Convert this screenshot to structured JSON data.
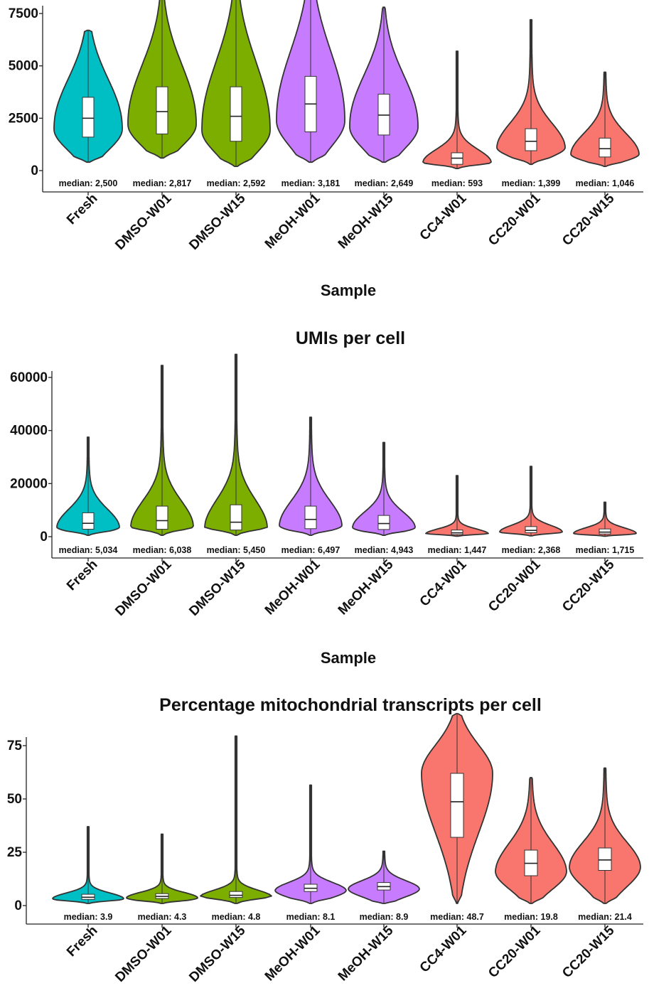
{
  "chart_data": [
    {
      "type": "violin",
      "title": "",
      "xlabel": "Sample",
      "ylabel": "",
      "ylim": [
        0,
        8800
      ],
      "yticks": [
        0,
        2500,
        5000,
        7500
      ],
      "ytick_labels": [
        "0",
        "2500",
        "5000",
        "7500"
      ],
      "categories": [
        "Fresh",
        "DMSO-W01",
        "DMSO-W15",
        "MeOH-W01",
        "MeOH-W15",
        "CC4-W01",
        "CC20-W01",
        "CC20-W15"
      ],
      "colors": [
        "#00bfc4",
        "#7cae00",
        "#7cae00",
        "#c77cff",
        "#c77cff",
        "#f8766d",
        "#f8766d",
        "#f8766d"
      ],
      "median": [
        2500,
        2817,
        2592,
        3181,
        2649,
        593,
        1399,
        1046
      ],
      "median_labels": [
        "median: 2,500",
        "median: 2,817",
        "median: 2,592",
        "median: 3,181",
        "median: 2,649",
        "median: 593",
        "median: 1,399",
        "median: 1,046"
      ],
      "q1": [
        1600,
        1750,
        1400,
        1850,
        1700,
        300,
        950,
        650
      ],
      "q3": [
        3500,
        4000,
        4000,
        4500,
        3650,
        850,
        2000,
        1550
      ],
      "min": [
        400,
        600,
        200,
        400,
        400,
        100,
        300,
        200
      ],
      "max": [
        6700,
        8500,
        8500,
        8500,
        7800,
        5700,
        7200,
        4700
      ]
    },
    {
      "type": "violin",
      "title": "UMIs per cell",
      "xlabel": "Sample",
      "ylabel": "",
      "ylim": [
        -1000,
        72000
      ],
      "yticks": [
        0,
        20000,
        40000,
        60000
      ],
      "ytick_labels": [
        "0",
        "20000",
        "40000",
        "60000"
      ],
      "categories": [
        "Fresh",
        "DMSO-W01",
        "DMSO-W15",
        "MeOH-W01",
        "MeOH-W15",
        "CC4-W01",
        "CC20-W01",
        "CC20-W15"
      ],
      "colors": [
        "#00bfc4",
        "#7cae00",
        "#7cae00",
        "#c77cff",
        "#c77cff",
        "#f8766d",
        "#f8766d",
        "#f8766d"
      ],
      "median": [
        5034,
        6038,
        5450,
        6497,
        4943,
        1447,
        2368,
        1715
      ],
      "median_labels": [
        "median: 5,034",
        "median: 6,038",
        "median: 5,450",
        "median: 6,497",
        "median: 4,943",
        "median: 1,447",
        "median: 2,368",
        "median: 1,715"
      ],
      "q1": [
        2800,
        2800,
        2500,
        3000,
        2700,
        800,
        1500,
        1000
      ],
      "q3": [
        9000,
        11500,
        12000,
        11500,
        8000,
        2500,
        3800,
        2900
      ],
      "min": [
        500,
        500,
        500,
        500,
        500,
        200,
        300,
        200
      ],
      "max": [
        37500,
        64500,
        68700,
        45000,
        35500,
        23000,
        26500,
        13000
      ]
    },
    {
      "type": "violin",
      "title": "Percentage mitochondrial transcripts per cell",
      "xlabel": "",
      "ylabel": "",
      "ylim": [
        -3,
        93
      ],
      "yticks": [
        0,
        25,
        50,
        75
      ],
      "ytick_labels": [
        "0",
        "25",
        "50",
        "75"
      ],
      "categories": [
        "Fresh",
        "DMSO-W01",
        "DMSO-W15",
        "MeOH-W01",
        "MeOH-W15",
        "CC4-W01",
        "CC20-W01",
        "CC20-W15"
      ],
      "colors": [
        "#00bfc4",
        "#7cae00",
        "#7cae00",
        "#c77cff",
        "#c77cff",
        "#f8766d",
        "#f8766d",
        "#f8766d"
      ],
      "median": [
        3.9,
        4.3,
        4.8,
        8.1,
        8.9,
        48.7,
        19.8,
        21.4
      ],
      "median_labels": [
        "median: 3.9",
        "median: 4.3",
        "median: 4.8",
        "median: 8.1",
        "median: 8.9",
        "median: 48.7",
        "median: 19.8",
        "median: 21.4"
      ],
      "q1": [
        2.9,
        3.3,
        3.8,
        6.6,
        7.3,
        32,
        14,
        16.5
      ],
      "q3": [
        5.3,
        5.6,
        6.6,
        10,
        10.8,
        62,
        26,
        27
      ],
      "min": [
        1,
        1,
        1,
        1,
        1,
        1,
        1,
        1
      ],
      "max": [
        37,
        33.5,
        79.5,
        56.5,
        25.5,
        90,
        60,
        64.5
      ]
    }
  ]
}
